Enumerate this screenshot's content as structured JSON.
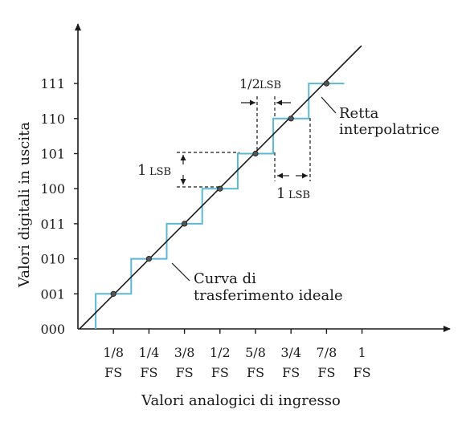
{
  "diagram": {
    "y_axis_title": "Valori digitali in uscita",
    "x_axis_title": "Valori analogici di ingresso",
    "y_ticks": [
      "000",
      "001",
      "010",
      "011",
      "100",
      "101",
      "110",
      "111"
    ],
    "x_ticks": [
      {
        "top": "1/8",
        "bottom": "FS"
      },
      {
        "top": "1/4",
        "bottom": "FS"
      },
      {
        "top": "3/8",
        "bottom": "FS"
      },
      {
        "top": "1/2",
        "bottom": "FS"
      },
      {
        "top": "5/8",
        "bottom": "FS"
      },
      {
        "top": "3/4",
        "bottom": "FS"
      },
      {
        "top": "7/8",
        "bottom": "FS"
      },
      {
        "top": "1",
        "bottom": "FS"
      }
    ],
    "annotations": {
      "half_lsb": {
        "num": "1/2",
        "unit": "LSB"
      },
      "lsb_vertical": {
        "num": "1",
        "unit": "LSB"
      },
      "lsb_horizontal": {
        "num": "1",
        "unit": "LSB"
      },
      "line_label_1": "Retta",
      "line_label_2": "interpolatrice",
      "curve_label_1": "Curva di",
      "curve_label_2": "trasferimento ideale"
    },
    "colors": {
      "staircase": "#5bb8d4",
      "axes": "#1a1a1a",
      "line": "#1a1a1a"
    }
  }
}
